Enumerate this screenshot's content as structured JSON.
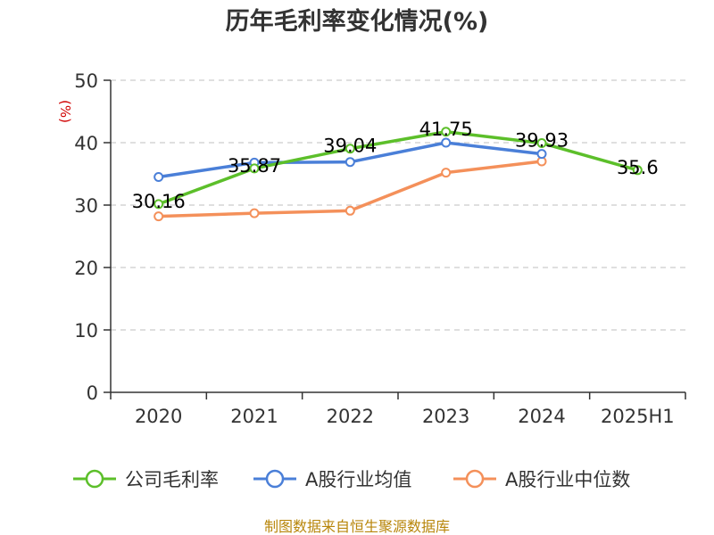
{
  "chart_data": {
    "type": "line",
    "title": "历年毛利率变化情况(%)",
    "ylabel": "(%)",
    "xlabel": "",
    "categories": [
      "2020",
      "2021",
      "2022",
      "2023",
      "2024",
      "2025H1"
    ],
    "ylim": [
      0,
      50
    ],
    "yticks": [
      0,
      10,
      20,
      30,
      40,
      50
    ],
    "grid": true,
    "legend_position": "bottom",
    "series": [
      {
        "name": "公司毛利率",
        "color": "#5cbf2a",
        "values": [
          30.16,
          35.87,
          39.04,
          41.75,
          39.93,
          35.6
        ],
        "labels": [
          "30.16",
          "35.87",
          "39.04",
          "41.75",
          "39.93",
          "35.6"
        ]
      },
      {
        "name": "A股行业均值",
        "color": "#4a7fd8",
        "values": [
          34.5,
          36.8,
          36.9,
          40.0,
          38.2,
          null
        ]
      },
      {
        "name": "A股行业中位数",
        "color": "#f4905a",
        "values": [
          28.2,
          28.7,
          29.1,
          35.2,
          37.0,
          null
        ]
      }
    ]
  },
  "source_text": "制图数据来自恒生聚源数据库"
}
